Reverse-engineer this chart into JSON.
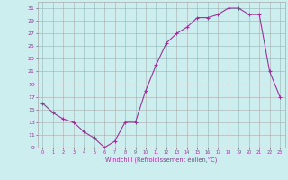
{
  "x": [
    0,
    1,
    2,
    3,
    4,
    5,
    6,
    7,
    8,
    9,
    10,
    11,
    12,
    13,
    14,
    15,
    16,
    17,
    18,
    19,
    20,
    21,
    22,
    23
  ],
  "y": [
    16,
    14.5,
    13.5,
    13,
    11.5,
    10.5,
    9,
    10,
    13,
    13,
    18,
    22,
    25.5,
    27,
    28,
    29.5,
    29.5,
    30,
    31,
    31,
    30,
    30,
    21,
    17
  ],
  "line_color": "#993399",
  "marker": "+",
  "marker_color": "#993399",
  "bg_color": "#cceeee",
  "grid_color": "#aaaaaa",
  "xlabel": "Windchill (Refroidissement éolien,°C)",
  "xlabel_color": "#993399",
  "tick_color": "#993399",
  "ylim": [
    9,
    32
  ],
  "yticks": [
    9,
    11,
    13,
    15,
    17,
    19,
    21,
    23,
    25,
    27,
    29,
    31
  ],
  "xlim": [
    -0.5,
    23.5
  ],
  "xticks": [
    0,
    1,
    2,
    3,
    4,
    5,
    6,
    7,
    8,
    9,
    10,
    11,
    12,
    13,
    14,
    15,
    16,
    17,
    18,
    19,
    20,
    21,
    22,
    23
  ]
}
